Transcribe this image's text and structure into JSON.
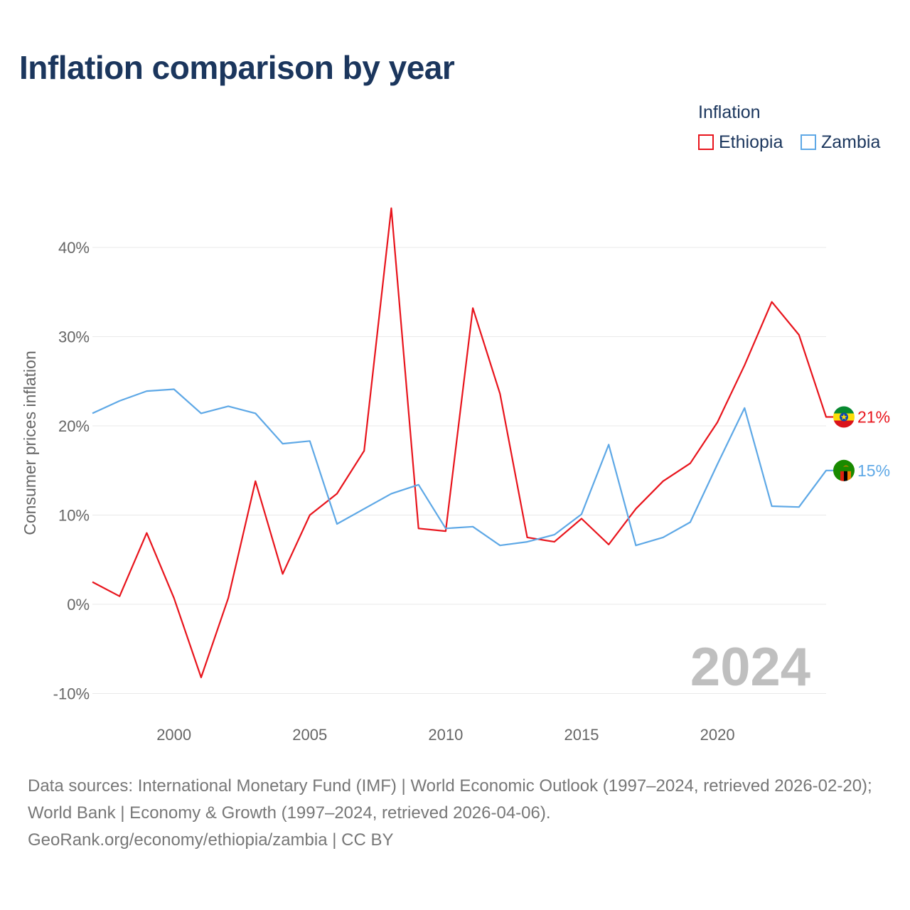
{
  "title": "Inflation comparison by year",
  "legend": {
    "title": "Inflation",
    "items": [
      {
        "label": "Ethiopia",
        "color": "#e8141c"
      },
      {
        "label": "Zambia",
        "color": "#5ea8e6"
      }
    ]
  },
  "watermark_year": "2024",
  "footer": {
    "sources": "Data sources: International Monetary Fund (IMF) | World Economic Outlook (1997–2024, retrieved 2026-02-20); World Bank | Economy & Growth (1997–2024, retrieved 2026-04-06).",
    "credit": "GeoRank.org/economy/ethiopia/zambia | CC BY"
  },
  "chart_data": {
    "type": "line",
    "title": "Inflation comparison by year",
    "xlabel": "",
    "ylabel": "Consumer prices inflation",
    "x": [
      1997,
      1998,
      1999,
      2000,
      2001,
      2002,
      2003,
      2004,
      2005,
      2006,
      2007,
      2008,
      2009,
      2010,
      2011,
      2012,
      2013,
      2014,
      2015,
      2016,
      2017,
      2018,
      2019,
      2020,
      2021,
      2022,
      2023,
      2024
    ],
    "xlim": [
      1997,
      2024
    ],
    "xticks": [
      2000,
      2005,
      2010,
      2015,
      2020
    ],
    "ylim": [
      -10,
      45
    ],
    "yticks": [
      -10,
      0,
      10,
      20,
      30,
      40
    ],
    "ytick_labels": [
      "-10%",
      "0%",
      "10%",
      "20%",
      "30%",
      "40%"
    ],
    "grid": true,
    "legend_position": "top-right",
    "series": [
      {
        "name": "Ethiopia",
        "color": "#e8141c",
        "end_label": "21%",
        "values": [
          2.5,
          0.9,
          8.0,
          0.7,
          -8.2,
          0.7,
          13.8,
          3.4,
          10.0,
          12.4,
          17.2,
          44.4,
          8.5,
          8.2,
          33.2,
          23.6,
          7.5,
          7.0,
          9.6,
          6.7,
          10.7,
          13.8,
          15.8,
          20.4,
          26.8,
          33.9,
          30.2,
          21.0
        ]
      },
      {
        "name": "Zambia",
        "color": "#5ea8e6",
        "end_label": "15%",
        "values": [
          21.4,
          22.8,
          23.9,
          24.1,
          21.4,
          22.2,
          21.4,
          18.0,
          18.3,
          9.0,
          10.7,
          12.4,
          13.4,
          8.5,
          8.7,
          6.6,
          7.0,
          7.8,
          10.1,
          17.9,
          6.6,
          7.5,
          9.2,
          15.7,
          22.0,
          11.0,
          10.9,
          15.0
        ]
      }
    ]
  }
}
